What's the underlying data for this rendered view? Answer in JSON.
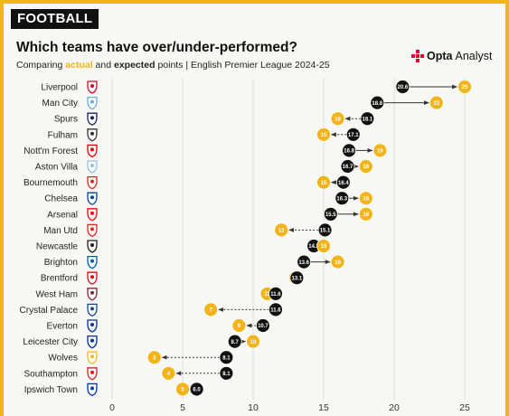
{
  "badge": "FOOTBALL",
  "title": "Which teams have over/under-performed?",
  "subtitle": {
    "prefix": "Comparing ",
    "actual_word": "actual",
    "middle": " and ",
    "expected_word": "expected",
    "suffix": " points | English Premier League 2024-25"
  },
  "brand": {
    "name": "Opta",
    "product": "Analyst"
  },
  "colors": {
    "actual": "#f3b41b",
    "expected": "#111111",
    "grid": "#dcdcdc",
    "border": "#f3b41b",
    "background": "#f7f7f5"
  },
  "chart_data": {
    "type": "dot-arrow",
    "xlim": [
      0,
      25
    ],
    "xticks": [
      0,
      5,
      10,
      15,
      20,
      25
    ],
    "grid": true,
    "teams": [
      {
        "name": "Liverpool",
        "expected": 20.6,
        "actual": 25,
        "expected_label": "20.6",
        "actual_label": "25",
        "crest": "#c8102e"
      },
      {
        "name": "Man City",
        "expected": 18.8,
        "actual": 23,
        "expected_label": "18.8",
        "actual_label": "23",
        "crest": "#6cabdd"
      },
      {
        "name": "Spurs",
        "expected": 18.1,
        "actual": 16,
        "expected_label": "18.1",
        "actual_label": "16",
        "crest": "#132257"
      },
      {
        "name": "Fulham",
        "expected": 17.1,
        "actual": 15,
        "expected_label": "17.1",
        "actual_label": "15",
        "crest": "#333333"
      },
      {
        "name": "Nott'm Forest",
        "expected": 16.8,
        "actual": 19,
        "expected_label": "16.8",
        "actual_label": "19",
        "crest": "#dd0000"
      },
      {
        "name": "Aston Villa",
        "expected": 16.7,
        "actual": 18,
        "expected_label": "16.7",
        "actual_label": "18",
        "crest": "#95bfe5"
      },
      {
        "name": "Bournemouth",
        "expected": 16.4,
        "actual": 15,
        "expected_label": "16.4",
        "actual_label": "15",
        "crest": "#da291c"
      },
      {
        "name": "Chelsea",
        "expected": 16.3,
        "actual": 18,
        "expected_label": "16.3",
        "actual_label": "18",
        "crest": "#034694"
      },
      {
        "name": "Arsenal",
        "expected": 15.5,
        "actual": 18,
        "expected_label": "15.5",
        "actual_label": "18",
        "crest": "#ef0107"
      },
      {
        "name": "Man Utd",
        "expected": 15.1,
        "actual": 12,
        "expected_label": "15.1",
        "actual_label": "12",
        "crest": "#da291c"
      },
      {
        "name": "Newcastle",
        "expected": 14.3,
        "actual": 15,
        "expected_label": "14.3",
        "actual_label": "15",
        "crest": "#241f20"
      },
      {
        "name": "Brighton",
        "expected": 13.6,
        "actual": 16,
        "expected_label": "13.6",
        "actual_label": "16",
        "crest": "#0057b8"
      },
      {
        "name": "Brentford",
        "expected": 13.1,
        "actual": 13,
        "expected_label": "13.1",
        "actual_label": "13",
        "crest": "#e30613"
      },
      {
        "name": "West Ham",
        "expected": 11.6,
        "actual": 11,
        "expected_label": "11.6",
        "actual_label": "11",
        "crest": "#7a263a"
      },
      {
        "name": "Crystal Palace",
        "expected": 11.6,
        "actual": 7,
        "expected_label": "11.6",
        "actual_label": "7",
        "crest": "#1b458f"
      },
      {
        "name": "Everton",
        "expected": 10.7,
        "actual": 9,
        "expected_label": "10.7",
        "actual_label": "9",
        "crest": "#003399"
      },
      {
        "name": "Leicester City",
        "expected": 8.7,
        "actual": 10,
        "expected_label": "8.7",
        "actual_label": "10",
        "crest": "#003090"
      },
      {
        "name": "Wolves",
        "expected": 8.1,
        "actual": 3,
        "expected_label": "8.1",
        "actual_label": "3",
        "crest": "#fdb913"
      },
      {
        "name": "Southampton",
        "expected": 8.1,
        "actual": 4,
        "expected_label": "8.1",
        "actual_label": "4",
        "crest": "#d71920"
      },
      {
        "name": "Ipswich Town",
        "expected": 6.0,
        "actual": 5,
        "expected_label": "6.0",
        "actual_label": "5",
        "crest": "#0033a0"
      }
    ]
  }
}
